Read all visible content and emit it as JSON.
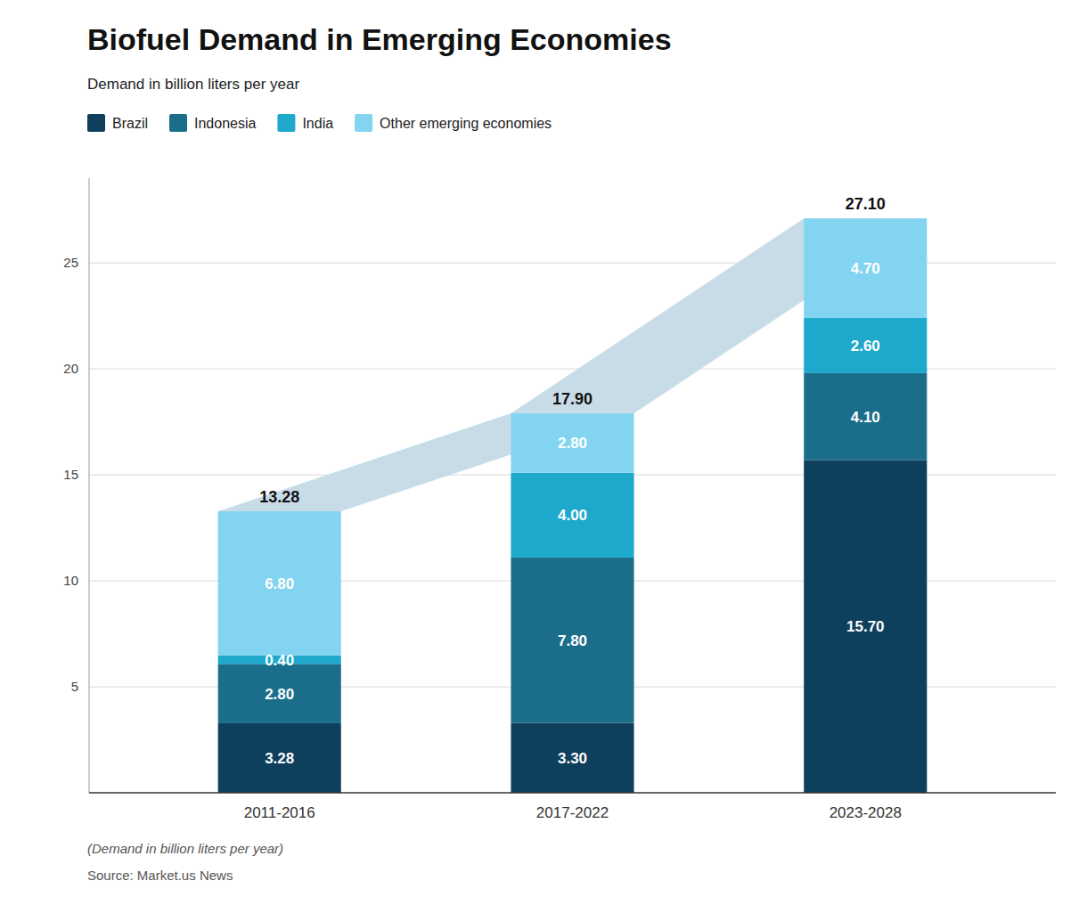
{
  "chart_data": {
    "type": "bar",
    "stacked": true,
    "title": "Biofuel Demand in Emerging Economies",
    "subtitle": "Demand in billion liters per year",
    "annotations": [
      "(Demand in billion liters per year)",
      "Source: Market.us News"
    ],
    "categories": [
      "2011-2016",
      "2017-2022",
      "2023-2028"
    ],
    "series": [
      {
        "name": "Brazil",
        "color": "#0e3f5c",
        "values": [
          3.28,
          3.3,
          15.7
        ],
        "value_labels": [
          "3.28",
          "3.30",
          "15.70"
        ]
      },
      {
        "name": "Indonesia",
        "color": "#1a6e8a",
        "values": [
          2.8,
          7.8,
          4.1
        ],
        "value_labels": [
          "2.80",
          "7.80",
          "4.10"
        ]
      },
      {
        "name": "India",
        "color": "#1da8cc",
        "values": [
          0.4,
          4.0,
          2.6
        ],
        "value_labels": [
          "0.40",
          "4.00",
          "2.60"
        ]
      },
      {
        "name": "Other emerging economies",
        "color": "#82d4f0",
        "values": [
          6.8,
          2.8,
          4.7
        ],
        "value_labels": [
          "6.80",
          "2.80",
          "4.70"
        ]
      }
    ],
    "totals": [
      13.28,
      17.9,
      27.1
    ],
    "total_labels": [
      "13.28",
      "17.90",
      "27.10"
    ],
    "color": "#c8dce8",
    "data_labels": true,
    "ylim": [
      0,
      29
    ],
    "yticks": [
      5,
      10,
      15,
      20,
      25
    ],
    "grid": true,
    "legend": "top-left"
  }
}
